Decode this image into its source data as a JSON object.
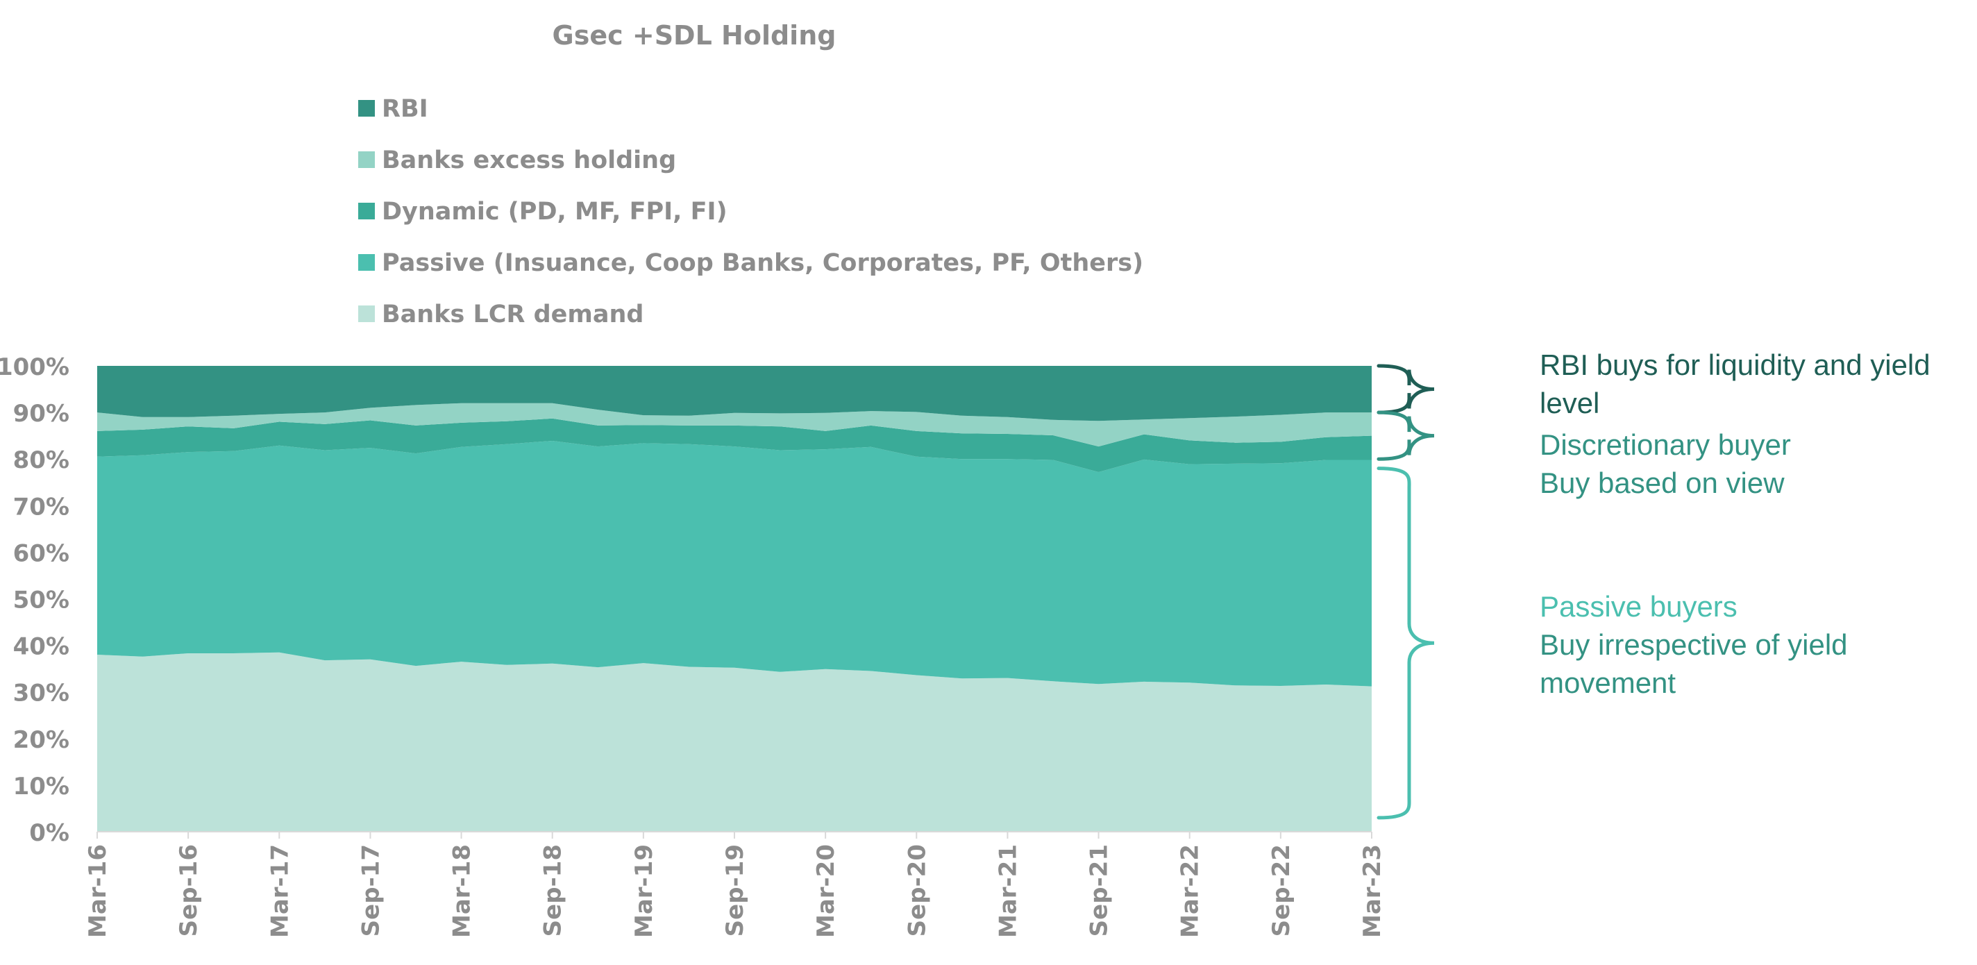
{
  "chart_data": {
    "type": "area",
    "stacked": true,
    "normalized": true,
    "title": "Gsec +SDL Holding",
    "xlabel": "",
    "ylabel": "",
    "ylim": [
      0,
      1
    ],
    "yticks": [
      "0%",
      "10%",
      "20%",
      "30%",
      "40%",
      "50%",
      "60%",
      "70%",
      "80%",
      "90%",
      "100%"
    ],
    "x": [
      "Mar-16",
      "Jun-16",
      "Sep-16",
      "Dec-16",
      "Mar-17",
      "Jun-17",
      "Sep-17",
      "Dec-17",
      "Mar-18",
      "Jun-18",
      "Sep-18",
      "Dec-18",
      "Mar-19",
      "Jun-19",
      "Sep-19",
      "Dec-19",
      "Mar-20",
      "Jun-20",
      "Sep-20",
      "Dec-20",
      "Mar-21",
      "Jun-21",
      "Sep-21",
      "Dec-21",
      "Mar-22",
      "Jun-22",
      "Sep-22",
      "Dec-22",
      "Mar-23"
    ],
    "xtick_labels": [
      "Mar-16",
      "Sep-16",
      "Mar-17",
      "Sep-17",
      "Mar-18",
      "Sep-18",
      "Mar-19",
      "Sep-19",
      "Mar-20",
      "Sep-20",
      "Mar-21",
      "Sep-21",
      "Mar-22",
      "Sep-22",
      "Mar-23"
    ],
    "legend_position": "top",
    "grid": false,
    "series": [
      {
        "name": "Banks LCR demand",
        "color": "#bce2d9",
        "values": [
          0.38,
          0.376,
          0.383,
          0.383,
          0.385,
          0.368,
          0.37,
          0.356,
          0.365,
          0.358,
          0.361,
          0.353,
          0.362,
          0.354,
          0.352,
          0.343,
          0.349,
          0.345,
          0.336,
          0.329,
          0.33,
          0.323,
          0.317,
          0.322,
          0.32,
          0.314,
          0.313,
          0.316,
          0.312
        ]
      },
      {
        "name": "Passive (Insuance, Coop Banks, Corporates, PF, Others)",
        "color": "#4bbfaf",
        "values": [
          0.425,
          0.432,
          0.432,
          0.434,
          0.444,
          0.451,
          0.454,
          0.456,
          0.461,
          0.474,
          0.478,
          0.474,
          0.472,
          0.478,
          0.475,
          0.476,
          0.472,
          0.481,
          0.469,
          0.471,
          0.47,
          0.475,
          0.455,
          0.477,
          0.469,
          0.476,
          0.478,
          0.482,
          0.486
        ]
      },
      {
        "name": "Dynamic (PD, MF, FPI, FI)",
        "color": "#3aab98",
        "values": [
          0.055,
          0.055,
          0.055,
          0.049,
          0.051,
          0.056,
          0.059,
          0.06,
          0.052,
          0.049,
          0.048,
          0.045,
          0.039,
          0.04,
          0.045,
          0.051,
          0.039,
          0.046,
          0.055,
          0.055,
          0.054,
          0.053,
          0.055,
          0.054,
          0.051,
          0.045,
          0.046,
          0.049,
          0.052
        ]
      },
      {
        "name": "Banks excess holding",
        "color": "#93d3c5",
        "values": [
          0.04,
          0.027,
          0.02,
          0.027,
          0.017,
          0.025,
          0.027,
          0.044,
          0.042,
          0.039,
          0.033,
          0.034,
          0.021,
          0.021,
          0.027,
          0.028,
          0.039,
          0.031,
          0.041,
          0.038,
          0.036,
          0.033,
          0.055,
          0.032,
          0.048,
          0.056,
          0.058,
          0.053,
          0.05
        ]
      },
      {
        "name": "RBI",
        "color": "#339283",
        "values": [
          0.1,
          0.11,
          0.11,
          0.107,
          0.103,
          0.1,
          0.09,
          0.084,
          0.08,
          0.08,
          0.08,
          0.094,
          0.106,
          0.107,
          0.101,
          0.102,
          0.101,
          0.097,
          0.099,
          0.107,
          0.11,
          0.116,
          0.118,
          0.115,
          0.112,
          0.109,
          0.105,
          0.1,
          0.1
        ]
      }
    ],
    "legend_order": [
      "RBI",
      "Banks excess holding",
      "Dynamic (PD, MF, FPI, FI)",
      "Passive (Insuance, Coop Banks, Corporates, PF, Others)",
      "Banks LCR demand"
    ],
    "annotations": [
      {
        "id": "rbi",
        "lines": [
          {
            "text": "RBI buys for liquidity and yield",
            "color": "#1f5e55"
          },
          {
            "text": "level",
            "color": "#1f5e55"
          }
        ],
        "brace_range": [
          0.9,
          1.0
        ],
        "brace_color": "#1f5e55"
      },
      {
        "id": "discretionary",
        "lines": [
          {
            "text": "Discretionary buyer",
            "color": "#339283"
          },
          {
            "text": "Buy based on view",
            "color": "#339283"
          }
        ],
        "brace_range": [
          0.8,
          0.9
        ],
        "brace_color": "#339283"
      },
      {
        "id": "passive",
        "lines": [
          {
            "text": "Passive buyers",
            "color": "#4bbfaf"
          },
          {
            "text": "Buy irrespective of yield",
            "color": "#339283"
          },
          {
            "text": "movement",
            "color": "#339283"
          }
        ],
        "brace_range": [
          0.03,
          0.78
        ],
        "brace_color": "#4bbfaf"
      }
    ]
  }
}
